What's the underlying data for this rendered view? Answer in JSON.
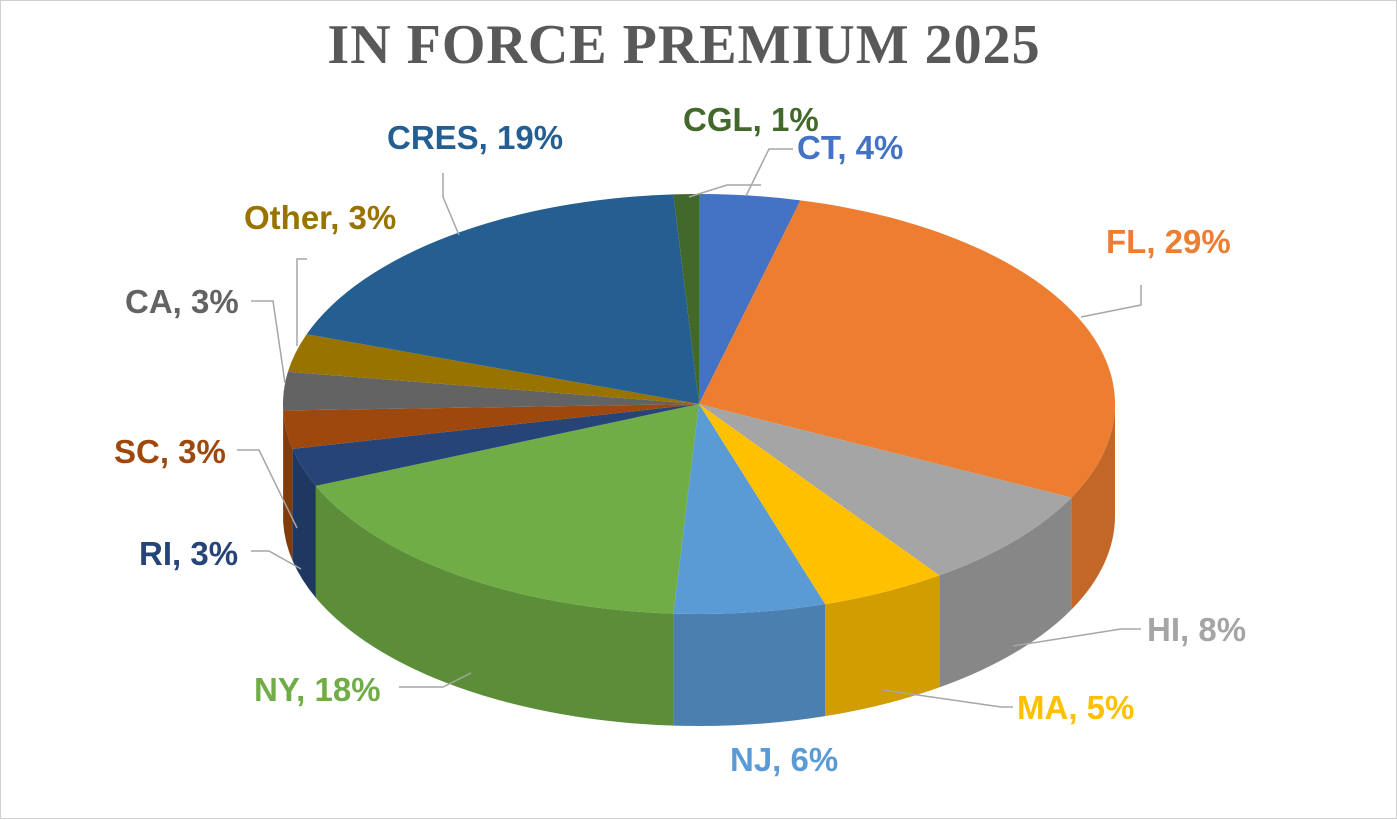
{
  "chart_data": {
    "type": "pie",
    "title": "IN FORCE PREMIUM 2025",
    "slices": [
      {
        "name": "CT",
        "value": 4,
        "label": "CT, 4%",
        "color": "#4472C4",
        "label_color": "#4472C4"
      },
      {
        "name": "FL",
        "value": 29,
        "label": "FL, 29%",
        "color": "#ED7D31",
        "label_color": "#ED7D31"
      },
      {
        "name": "HI",
        "value": 8,
        "label": "HI, 8%",
        "color": "#A5A5A5",
        "label_color": "#A5A5A5"
      },
      {
        "name": "MA",
        "value": 5,
        "label": "MA, 5%",
        "color": "#FFC000",
        "label_color": "#FFC000"
      },
      {
        "name": "NJ",
        "value": 6,
        "label": "NJ, 6%",
        "color": "#5B9BD5",
        "label_color": "#5B9BD5"
      },
      {
        "name": "NY",
        "value": 18,
        "label": "NY, 18%",
        "color": "#70AD47",
        "label_color": "#70AD47"
      },
      {
        "name": "RI",
        "value": 3,
        "label": "RI, 3%",
        "color": "#264478",
        "label_color": "#264478"
      },
      {
        "name": "SC",
        "value": 3,
        "label": "SC, 3%",
        "color": "#9E480E",
        "label_color": "#9E480E"
      },
      {
        "name": "CA",
        "value": 3,
        "label": "CA, 3%",
        "color": "#636363",
        "label_color": "#636363"
      },
      {
        "name": "Other",
        "value": 3,
        "label": "Other, 3%",
        "color": "#997300",
        "label_color": "#997300"
      },
      {
        "name": "CRES",
        "value": 19,
        "label": "CRES, 19%",
        "color": "#255E91",
        "label_color": "#255E91"
      },
      {
        "name": "CGL",
        "value": 1,
        "label": "CGL, 1%",
        "color": "#43682B",
        "label_color": "#43682B"
      }
    ],
    "style": "3d-pie",
    "data_labels": "category-and-percent",
    "legend": "none"
  }
}
